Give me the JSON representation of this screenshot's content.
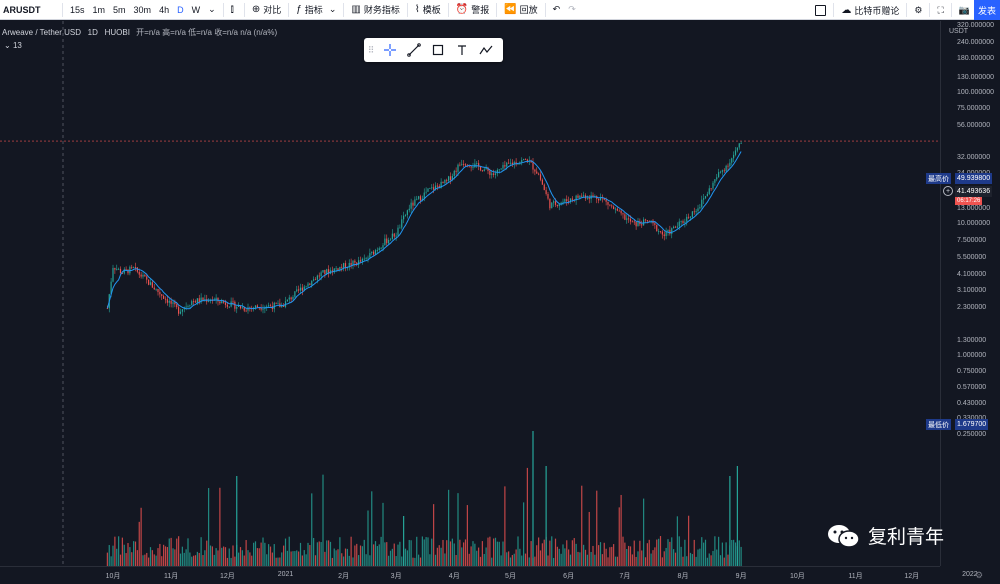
{
  "toolbar": {
    "symbol": "ARUSDT",
    "intervals": [
      "15s",
      "1m",
      "5m",
      "30m",
      "4h",
      "D",
      "W"
    ],
    "active_interval": "D",
    "compare_label": "对比",
    "indicators_label": "指标",
    "financials_label": "财务指标",
    "templates_label": "模板",
    "alert_label": "警报",
    "replay_label": "回放",
    "exchange_label": "比特币赠论",
    "publish_label": "发表"
  },
  "legend": {
    "title": "Arweave / Tether USD",
    "interval": "1D",
    "exchange": "HUOBI",
    "ohlc": "开=n/a 高=n/a 低=n/a 收=n/a n/a (n/a%)",
    "indicator_count": "13"
  },
  "price_axis": {
    "currency": "USDT",
    "labels": [
      "420.000000",
      "320.000000",
      "240.000000",
      "180.000000",
      "130.000000",
      "100.000000",
      "75.000000",
      "56.000000",
      "32.000000",
      "24.000000",
      "18.000000",
      "13.000000",
      "10.000000",
      "7.500000",
      "5.500000",
      "4.100000",
      "3.100000",
      "2.300000",
      "1.300000",
      "1.000000",
      "0.750000",
      "0.570000",
      "0.430000",
      "0.330000",
      "0.250000"
    ],
    "high_label": "最高价",
    "high_value": "49.939800",
    "last_value": "41.493636",
    "countdown": "06:17:26",
    "low_label": "最低价",
    "low_value": "1.679700"
  },
  "time_axis": {
    "labels": [
      "10月",
      "11月",
      "12月",
      "2021",
      "2月",
      "3月",
      "4月",
      "5月",
      "6月",
      "7月",
      "8月",
      "9月",
      "10月",
      "11月",
      "12月",
      "2022"
    ]
  },
  "watermark": {
    "text": "复利青年",
    "logo": "wechat-icon"
  },
  "colors": {
    "up": "#26a69a",
    "down": "#ef5350",
    "ma": "#2196f3",
    "background": "#131722",
    "accent": "#2962ff"
  },
  "chart_data": {
    "type": "candlestick",
    "title": "Arweave / Tether USD",
    "interval": "1D",
    "y_scale": "log",
    "ylim": [
      0.25,
      420
    ],
    "ma_series_name": "",
    "key_points": [
      {
        "date": "2020-09-28",
        "price": 2.3
      },
      {
        "date": "2020-10-01",
        "price": 4.8
      },
      {
        "date": "2020-10-06",
        "price": 4.3
      },
      {
        "date": "2020-10-12",
        "price": 4.6
      },
      {
        "date": "2020-10-20",
        "price": 3.6
      },
      {
        "date": "2020-10-27",
        "price": 2.9
      },
      {
        "date": "2020-11-05",
        "price": 2.2
      },
      {
        "date": "2020-11-12",
        "price": 2.6
      },
      {
        "date": "2020-11-22",
        "price": 2.7
      },
      {
        "date": "2020-12-01",
        "price": 2.5
      },
      {
        "date": "2020-12-10",
        "price": 2.3
      },
      {
        "date": "2020-12-22",
        "price": 2.4
      },
      {
        "date": "2020-12-30",
        "price": 2.4
      },
      {
        "date": "2021-01-10",
        "price": 3.3
      },
      {
        "date": "2021-01-20",
        "price": 4.2
      },
      {
        "date": "2021-02-01",
        "price": 4.8
      },
      {
        "date": "2021-02-12",
        "price": 5.3
      },
      {
        "date": "2021-02-22",
        "price": 7.2
      },
      {
        "date": "2021-03-01",
        "price": 8.5
      },
      {
        "date": "2021-03-08",
        "price": 13.5
      },
      {
        "date": "2021-03-18",
        "price": 18.0
      },
      {
        "date": "2021-03-28",
        "price": 21.0
      },
      {
        "date": "2021-04-05",
        "price": 30.0
      },
      {
        "date": "2021-04-15",
        "price": 27.0
      },
      {
        "date": "2021-04-22",
        "price": 24.0
      },
      {
        "date": "2021-05-01",
        "price": 29.0
      },
      {
        "date": "2021-05-10",
        "price": 31.0
      },
      {
        "date": "2021-05-16",
        "price": 24.0
      },
      {
        "date": "2021-05-22",
        "price": 14.0
      },
      {
        "date": "2021-05-30",
        "price": 15.0
      },
      {
        "date": "2021-06-08",
        "price": 16.5
      },
      {
        "date": "2021-06-18",
        "price": 16.0
      },
      {
        "date": "2021-06-28",
        "price": 12.0
      },
      {
        "date": "2021-07-06",
        "price": 10.0
      },
      {
        "date": "2021-07-14",
        "price": 10.5
      },
      {
        "date": "2021-07-22",
        "price": 8.2
      },
      {
        "date": "2021-08-01",
        "price": 10.5
      },
      {
        "date": "2021-08-10",
        "price": 14.0
      },
      {
        "date": "2021-08-20",
        "price": 24.0
      },
      {
        "date": "2021-08-26",
        "price": 30.0
      },
      {
        "date": "2021-09-01",
        "price": 41.5
      }
    ],
    "reference_lines": [
      {
        "label": "最高价",
        "value": 49.9398
      },
      {
        "label": "最低价",
        "value": 1.6797
      }
    ],
    "last_price": 41.493636
  }
}
